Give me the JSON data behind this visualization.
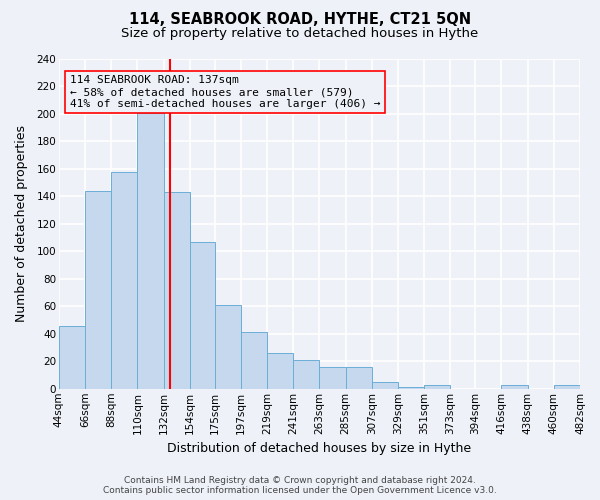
{
  "title": "114, SEABROOK ROAD, HYTHE, CT21 5QN",
  "subtitle": "Size of property relative to detached houses in Hythe",
  "xlabel": "Distribution of detached houses by size in Hythe",
  "ylabel": "Number of detached properties",
  "bar_left_edges": [
    44,
    66,
    88,
    110,
    132,
    154,
    175,
    197,
    219,
    241,
    263,
    285,
    307,
    329,
    351,
    373,
    394,
    416,
    438,
    460
  ],
  "bar_widths": [
    22,
    22,
    22,
    22,
    22,
    21,
    22,
    22,
    22,
    22,
    22,
    22,
    22,
    22,
    22,
    21,
    22,
    22,
    22,
    22
  ],
  "bar_heights": [
    46,
    144,
    158,
    201,
    143,
    107,
    61,
    41,
    26,
    21,
    16,
    16,
    5,
    1,
    3,
    0,
    0,
    3,
    0,
    3
  ],
  "bar_color": "#c5d8ed",
  "bar_edgecolor": "#6aaed6",
  "x_tick_labels": [
    "44sqm",
    "66sqm",
    "88sqm",
    "110sqm",
    "132sqm",
    "154sqm",
    "175sqm",
    "197sqm",
    "219sqm",
    "241sqm",
    "263sqm",
    "285sqm",
    "307sqm",
    "329sqm",
    "351sqm",
    "373sqm",
    "394sqm",
    "416sqm",
    "438sqm",
    "460sqm",
    "482sqm"
  ],
  "ylim": [
    0,
    240
  ],
  "yticks": [
    0,
    20,
    40,
    60,
    80,
    100,
    120,
    140,
    160,
    180,
    200,
    220,
    240
  ],
  "vline_x": 137,
  "vline_color": "red",
  "annotation_line1": "114 SEABROOK ROAD: 137sqm",
  "annotation_line2": "← 58% of detached houses are smaller (579)",
  "annotation_line3": "41% of semi-detached houses are larger (406) →",
  "footer_line1": "Contains HM Land Registry data © Crown copyright and database right 2024.",
  "footer_line2": "Contains public sector information licensed under the Open Government Licence v3.0.",
  "background_color": "#eef2f8",
  "grid_color": "#ffffff",
  "title_fontsize": 10.5,
  "subtitle_fontsize": 9.5,
  "axis_label_fontsize": 9,
  "tick_fontsize": 7.5,
  "annotation_fontsize": 8,
  "footer_fontsize": 6.5
}
